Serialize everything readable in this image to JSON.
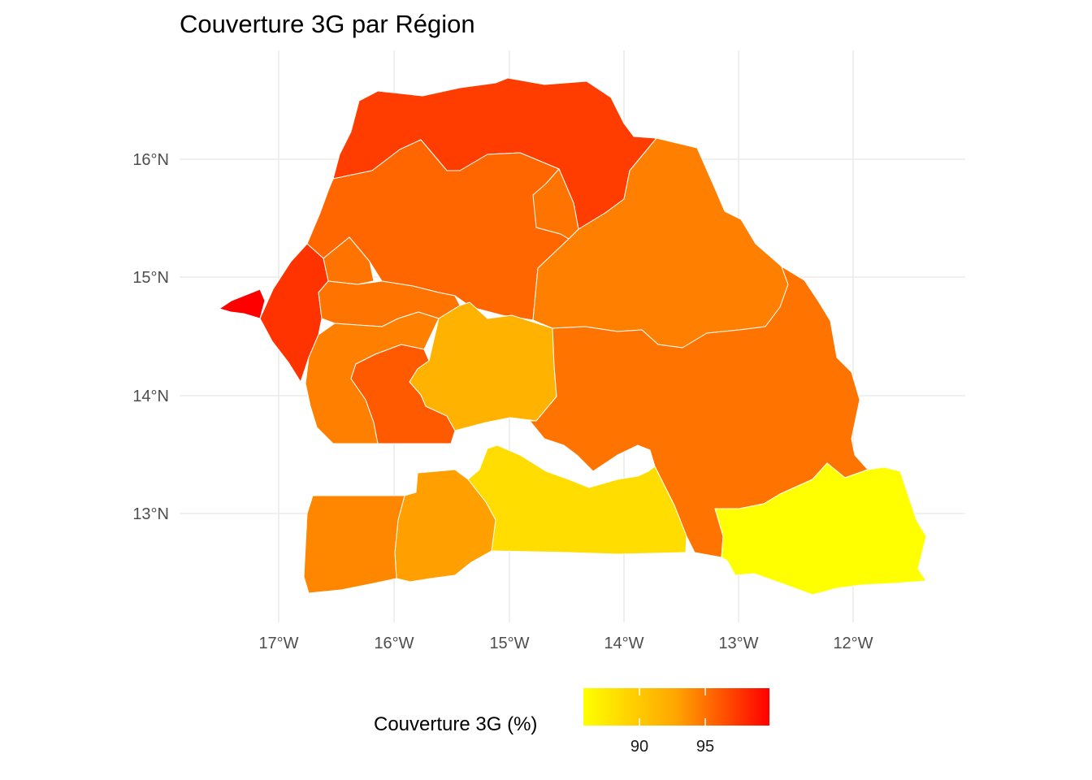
{
  "title": "Couverture 3G par Région",
  "x_axis": {
    "ticks": [
      "17°W",
      "16°W",
      "15°W",
      "14°W",
      "13°W",
      "12°W"
    ],
    "values": [
      -17,
      -16,
      -15,
      -14,
      -13,
      -12
    ]
  },
  "y_axis": {
    "ticks": [
      "16°N",
      "15°N",
      "14°N",
      "13°N"
    ],
    "values": [
      16,
      15,
      14,
      13
    ]
  },
  "legend": {
    "title": "Couverture 3G (%)",
    "ticks": [
      "90",
      "95"
    ],
    "tick_values": [
      90,
      95
    ],
    "min_value": 86.9,
    "max_value": 99.9,
    "color_low": "#FFFF00",
    "color_mid": "#FFA500",
    "color_high": "#FF0000",
    "position": "bottom"
  },
  "chart_data": {
    "type": "choropleth",
    "title": "Couverture 3G par Région",
    "xlabel": "",
    "ylabel": "",
    "fill_label": "Couverture 3G (%)",
    "fill_scale": {
      "low": "#FFFF00",
      "mid": "#FFA500",
      "high": "#FF0000",
      "limits": [
        86.9,
        99.9
      ]
    },
    "regions": [
      {
        "id": "dakar",
        "value": 99.9,
        "color": "#FF0000"
      },
      {
        "id": "thies",
        "value": 98.3,
        "color": "#FF3300"
      },
      {
        "id": "saint-louis",
        "value": 98.0,
        "color": "#FF3D00"
      },
      {
        "id": "louga",
        "value": 96.5,
        "color": "#FF6600"
      },
      {
        "id": "diourbel",
        "value": 96.0,
        "color": "#FF7400"
      },
      {
        "id": "fatick",
        "value": 95.6,
        "color": "#FF7F00"
      },
      {
        "id": "kaolack",
        "value": 97.0,
        "color": "#FF5A00"
      },
      {
        "id": "kaffrine",
        "value": 92.0,
        "color": "#FFB300"
      },
      {
        "id": "matam",
        "value": 95.2,
        "color": "#FF8000"
      },
      {
        "id": "tambacounda",
        "value": 96.3,
        "color": "#FF7300"
      },
      {
        "id": "kedougou",
        "value": 86.9,
        "color": "#FFFF00"
      },
      {
        "id": "kolda",
        "value": 88.8,
        "color": "#FFDD00"
      },
      {
        "id": "sedhiou",
        "value": 93.5,
        "color": "#FF9F00"
      },
      {
        "id": "ziguinchor",
        "value": 95.0,
        "color": "#FF8700"
      }
    ]
  }
}
